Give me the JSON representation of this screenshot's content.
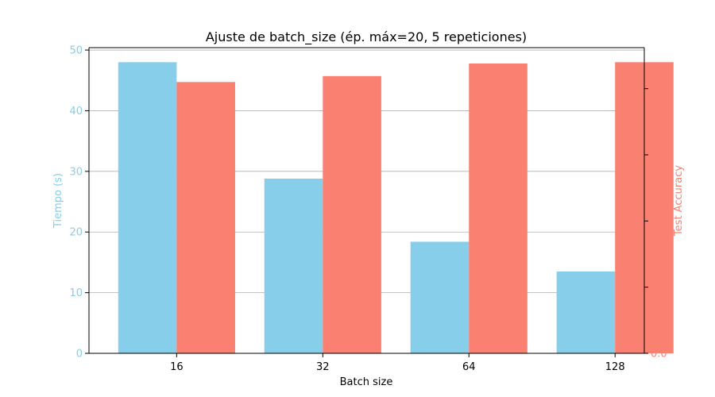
{
  "chart_data": {
    "type": "bar",
    "title": "Ajuste de batch_size (ép. máx=20, 5 repeticiones)",
    "xlabel": "Batch size",
    "categories": [
      "16",
      "32",
      "64",
      "128"
    ],
    "series": [
      {
        "name": "Tiempo (s)",
        "axis": "left",
        "color": "#87CEEB",
        "values": [
          48.0,
          28.8,
          18.4,
          13.5
        ],
        "ylabel": "Tiempo (s)",
        "ylim": [
          0,
          50.4
        ],
        "yticks": [
          0,
          10,
          20,
          30,
          40,
          50
        ]
      },
      {
        "name": "Test Accuracy",
        "axis": "right",
        "color": "#FA8072",
        "values": [
          0.41,
          0.419,
          0.438,
          0.44
        ],
        "ylabel": "Test Accuracy",
        "ylim": [
          0,
          0.462
        ],
        "yticks": [
          0.0,
          0.1,
          0.2,
          0.3,
          0.4
        ],
        "tick_labels": [
          "0.0",
          "0.1",
          "0.2",
          "0.3",
          "0.4"
        ]
      }
    ],
    "grid": "horizontal (left axis)",
    "legend": "none"
  }
}
